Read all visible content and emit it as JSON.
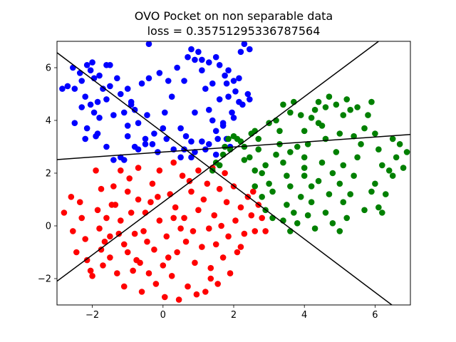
{
  "chart_data": {
    "type": "scatter",
    "title": "OVO Pocket on non separable data",
    "subtitle": "loss = 0.35751295336787564",
    "xlabel": "",
    "ylabel": "",
    "xlim": [
      -3.0,
      7.0
    ],
    "ylim": [
      -3.0,
      7.0
    ],
    "xticks": [
      -2,
      0,
      2,
      4,
      6
    ],
    "yticks": [
      -2,
      0,
      2,
      4,
      6
    ],
    "xtick_labels": [
      "−2",
      "0",
      "2",
      "4",
      "6"
    ],
    "ytick_labels": [
      "−2",
      "0",
      "2",
      "4",
      "6"
    ],
    "grid": false,
    "legend": "none",
    "series": [
      {
        "color": "#0000ff",
        "points": [
          [
            -2.85,
            5.2
          ],
          [
            -2.7,
            5.3
          ],
          [
            -2.5,
            5.2
          ],
          [
            -2.55,
            6.0
          ],
          [
            -2.5,
            3.9
          ],
          [
            -2.35,
            5.8
          ],
          [
            -2.3,
            5.5
          ],
          [
            -2.15,
            6.1
          ],
          [
            -2.0,
            6.2
          ],
          [
            -2.05,
            5.9
          ],
          [
            -1.95,
            5.6
          ],
          [
            -1.8,
            5.7
          ],
          [
            -1.7,
            5.2
          ],
          [
            -1.6,
            6.1
          ],
          [
            -1.5,
            6.1
          ],
          [
            -2.3,
            4.5
          ],
          [
            -2.2,
            4.9
          ],
          [
            -2.05,
            4.6
          ],
          [
            -1.95,
            4.3
          ],
          [
            -1.85,
            4.7
          ],
          [
            -1.8,
            4.1
          ],
          [
            -1.6,
            4.8
          ],
          [
            -1.5,
            5.3
          ],
          [
            -1.4,
            4.2
          ],
          [
            -1.3,
            5.6
          ],
          [
            -1.2,
            5.0
          ],
          [
            -1.1,
            4.3
          ],
          [
            -1.0,
            5.2
          ],
          [
            -0.9,
            4.7
          ],
          [
            -0.8,
            4.4
          ],
          [
            -0.7,
            3.9
          ],
          [
            -0.6,
            5.4
          ],
          [
            -0.4,
            6.9
          ],
          [
            -0.4,
            5.6
          ],
          [
            -0.45,
            4.2
          ],
          [
            -0.5,
            3.1
          ],
          [
            -0.7,
            2.9
          ],
          [
            -1.0,
            3.4
          ],
          [
            -1.2,
            2.6
          ],
          [
            -1.4,
            2.5
          ],
          [
            -1.1,
            2.5
          ],
          [
            -2.15,
            3.7
          ],
          [
            -2.2,
            3.3
          ],
          [
            -1.9,
            3.4
          ],
          [
            -1.6,
            3.0
          ],
          [
            -1.85,
            3.5
          ],
          [
            -0.9,
            4.6
          ],
          [
            -0.25,
            3.5
          ],
          [
            -0.15,
            2.8
          ],
          [
            -0.3,
            3.1
          ],
          [
            -0.1,
            5.8
          ],
          [
            0.15,
            5.5
          ],
          [
            0.25,
            4.9
          ],
          [
            0.4,
            6.0
          ],
          [
            0.05,
            4.3
          ],
          [
            0.0,
            3.7
          ],
          [
            0.1,
            3.3
          ],
          [
            0.3,
            2.9
          ],
          [
            0.6,
            5.5
          ],
          [
            0.8,
            6.7
          ],
          [
            0.7,
            6.4
          ],
          [
            0.9,
            6.3
          ],
          [
            1.0,
            6.6
          ],
          [
            1.1,
            6.3
          ],
          [
            1.3,
            6.2
          ],
          [
            1.1,
            5.9
          ],
          [
            1.2,
            5.2
          ],
          [
            1.4,
            5.4
          ],
          [
            1.5,
            6.4
          ],
          [
            1.6,
            6.1
          ],
          [
            1.75,
            5.7
          ],
          [
            1.85,
            5.9
          ],
          [
            1.8,
            5.4
          ],
          [
            2.0,
            5.5
          ],
          [
            2.15,
            5.6
          ],
          [
            2.05,
            5.1
          ],
          [
            2.15,
            4.7
          ],
          [
            2.25,
            4.6
          ],
          [
            2.4,
            5.0
          ],
          [
            2.45,
            4.8
          ],
          [
            2.2,
            6.6
          ],
          [
            2.3,
            6.9
          ],
          [
            2.45,
            6.7
          ],
          [
            1.85,
            4.9
          ],
          [
            1.6,
            4.8
          ],
          [
            1.3,
            4.4
          ],
          [
            1.4,
            4.0
          ],
          [
            1.5,
            3.6
          ],
          [
            1.7,
            3.9
          ],
          [
            1.9,
            3.0
          ],
          [
            1.95,
            4.3
          ],
          [
            2.0,
            4.1
          ],
          [
            0.9,
            4.3
          ],
          [
            0.65,
            3.4
          ],
          [
            0.8,
            3.2
          ],
          [
            0.6,
            2.9
          ],
          [
            0.9,
            2.8
          ],
          [
            0.8,
            2.6
          ],
          [
            1.5,
            2.7
          ],
          [
            1.8,
            3.3
          ],
          [
            1.2,
            2.9
          ],
          [
            0.5,
            2.6
          ],
          [
            1.1,
            3.2
          ],
          [
            -1.0,
            3.8
          ],
          [
            -0.8,
            3.0
          ],
          [
            1.55,
            3.3
          ],
          [
            -0.5,
            3.3
          ],
          [
            1.7,
            3.8
          ],
          [
            1.3,
            3.1
          ],
          [
            0.5,
            3.7
          ]
        ]
      },
      {
        "color": "#ff0000",
        "points": [
          [
            -2.8,
            0.5
          ],
          [
            -2.6,
            1.1
          ],
          [
            -2.55,
            -0.2
          ],
          [
            -2.3,
            0.3
          ],
          [
            -2.2,
            -0.5
          ],
          [
            -2.15,
            -1.3
          ],
          [
            -2.05,
            -1.7
          ],
          [
            -2.0,
            -1.9
          ],
          [
            -1.9,
            2.1
          ],
          [
            -1.85,
            0.6
          ],
          [
            -1.8,
            -0.1
          ],
          [
            -1.75,
            -0.9
          ],
          [
            -1.7,
            -1.5
          ],
          [
            -1.6,
            0.3
          ],
          [
            -1.5,
            -0.4
          ],
          [
            -1.5,
            -1.2
          ],
          [
            -1.4,
            1.5
          ],
          [
            -1.35,
            0.8
          ],
          [
            -1.3,
            -1.8
          ],
          [
            -1.2,
            2.1
          ],
          [
            -1.2,
            0.2
          ],
          [
            -1.1,
            -0.7
          ],
          [
            -1.1,
            -2.3
          ],
          [
            -1.0,
            1.3
          ],
          [
            -1.0,
            -1.0
          ],
          [
            -0.95,
            1.8
          ],
          [
            -0.9,
            0.5
          ],
          [
            -0.85,
            -1.7
          ],
          [
            -0.8,
            -0.3
          ],
          [
            -0.7,
            2.2
          ],
          [
            -0.7,
            1.0
          ],
          [
            -0.65,
            -1.4
          ],
          [
            -0.6,
            -2.5
          ],
          [
            -0.5,
            0.5
          ],
          [
            -0.45,
            -0.6
          ],
          [
            -0.4,
            -1.8
          ],
          [
            -0.3,
            1.6
          ],
          [
            -0.25,
            -0.9
          ],
          [
            -0.2,
            -2.2
          ],
          [
            -0.1,
            2.1
          ],
          [
            -0.1,
            0.2
          ],
          [
            0.0,
            -1.5
          ],
          [
            0.05,
            -2.7
          ],
          [
            0.1,
            -0.4
          ],
          [
            0.2,
            1.2
          ],
          [
            0.25,
            -1.9
          ],
          [
            0.3,
            2.4
          ],
          [
            0.35,
            0.7
          ],
          [
            0.4,
            -1.0
          ],
          [
            0.45,
            -2.8
          ],
          [
            0.55,
            1.9
          ],
          [
            0.6,
            0.3
          ],
          [
            0.65,
            -0.6
          ],
          [
            0.7,
            -2.3
          ],
          [
            0.8,
            1.3
          ],
          [
            0.85,
            -0.2
          ],
          [
            0.9,
            -1.4
          ],
          [
            1.0,
            2.1
          ],
          [
            1.0,
            0.6
          ],
          [
            1.1,
            -0.8
          ],
          [
            1.2,
            -2.5
          ],
          [
            1.25,
            1.6
          ],
          [
            1.3,
            -0.1
          ],
          [
            1.35,
            -1.6
          ],
          [
            1.4,
            2.2
          ],
          [
            1.45,
            0.4
          ],
          [
            1.5,
            -0.7
          ],
          [
            1.55,
            -2.2
          ],
          [
            1.6,
            1.4
          ],
          [
            1.65,
            0.0
          ],
          [
            1.7,
            -1.2
          ],
          [
            1.8,
            0.9
          ],
          [
            1.85,
            -0.4
          ],
          [
            1.9,
            -1.8
          ],
          [
            2.0,
            1.5
          ],
          [
            2.05,
            0.2
          ],
          [
            2.1,
            -1.0
          ],
          [
            2.2,
            0.7
          ],
          [
            2.3,
            -0.3
          ],
          [
            2.4,
            1.1
          ],
          [
            2.5,
            0.4
          ],
          [
            2.6,
            -0.2
          ],
          [
            2.7,
            0.8
          ],
          [
            2.8,
            0.3
          ],
          [
            2.9,
            -0.2
          ],
          [
            -2.35,
            0.9
          ],
          [
            -1.65,
            -0.6
          ],
          [
            -0.55,
            -0.2
          ],
          [
            0.15,
            -1.2
          ],
          [
            1.15,
            1.0
          ],
          [
            -1.45,
            0.8
          ],
          [
            -0.35,
            0.9
          ],
          [
            0.75,
            1.7
          ],
          [
            -2.45,
            -1.0
          ],
          [
            -0.75,
            -1.3
          ],
          [
            0.95,
            -2.6
          ],
          [
            1.75,
            2.0
          ],
          [
            -1.25,
            -0.3
          ],
          [
            0.5,
            -0.1
          ],
          [
            2.55,
            1.3
          ],
          [
            -0.15,
            1.1
          ],
          [
            1.35,
            -2.0
          ],
          [
            -1.75,
            1.4
          ],
          [
            0.3,
            0.3
          ],
          [
            2.2,
            -0.8
          ]
        ]
      },
      {
        "color": "#008000",
        "points": [
          [
            1.4,
            2.1
          ],
          [
            1.5,
            2.4
          ],
          [
            1.6,
            2.3
          ],
          [
            1.7,
            2.7
          ],
          [
            1.75,
            3.0
          ],
          [
            1.85,
            3.3
          ],
          [
            1.9,
            2.9
          ],
          [
            2.0,
            3.4
          ],
          [
            2.1,
            3.3
          ],
          [
            2.2,
            3.2
          ],
          [
            2.3,
            3.0
          ],
          [
            2.5,
            3.5
          ],
          [
            2.6,
            3.6
          ],
          [
            2.7,
            3.3
          ],
          [
            2.45,
            2.6
          ],
          [
            2.6,
            2.1
          ],
          [
            2.8,
            2.0
          ],
          [
            2.9,
            2.3
          ],
          [
            3.0,
            1.6
          ],
          [
            3.1,
            1.3
          ],
          [
            2.6,
            1.5
          ],
          [
            2.8,
            1.1
          ],
          [
            2.9,
            0.6
          ],
          [
            3.1,
            0.3
          ],
          [
            3.2,
            2.7
          ],
          [
            3.3,
            3.6
          ],
          [
            3.2,
            4.0
          ],
          [
            3.4,
            4.6
          ],
          [
            3.6,
            4.3
          ],
          [
            3.7,
            4.7
          ],
          [
            3.4,
            2.4
          ],
          [
            3.5,
            1.9
          ],
          [
            3.6,
            1.5
          ],
          [
            3.5,
            0.8
          ],
          [
            3.7,
            0.5
          ],
          [
            3.6,
            -0.2
          ],
          [
            3.8,
            0.1
          ],
          [
            3.9,
            1.1
          ],
          [
            4.0,
            1.9
          ],
          [
            4.0,
            2.6
          ],
          [
            4.1,
            3.1
          ],
          [
            4.0,
            3.6
          ],
          [
            4.2,
            4.1
          ],
          [
            4.3,
            4.4
          ],
          [
            4.4,
            4.7
          ],
          [
            4.5,
            3.8
          ],
          [
            4.6,
            3.3
          ],
          [
            4.5,
            2.4
          ],
          [
            4.4,
            1.7
          ],
          [
            4.2,
            0.9
          ],
          [
            4.1,
            0.4
          ],
          [
            4.3,
            -0.1
          ],
          [
            4.6,
            0.5
          ],
          [
            4.7,
            1.2
          ],
          [
            4.8,
            2.0
          ],
          [
            4.9,
            2.8
          ],
          [
            5.0,
            3.5
          ],
          [
            5.1,
            4.2
          ],
          [
            5.2,
            4.8
          ],
          [
            5.3,
            4.4
          ],
          [
            5.0,
            1.6
          ],
          [
            5.1,
            0.9
          ],
          [
            5.0,
            -0.2
          ],
          [
            5.2,
            0.3
          ],
          [
            5.3,
            1.2
          ],
          [
            5.4,
            1.9
          ],
          [
            5.5,
            2.6
          ],
          [
            5.6,
            3.1
          ],
          [
            5.7,
            3.7
          ],
          [
            5.8,
            4.2
          ],
          [
            5.9,
            4.7
          ],
          [
            6.0,
            3.5
          ],
          [
            6.1,
            2.9
          ],
          [
            6.2,
            2.3
          ],
          [
            6.0,
            1.6
          ],
          [
            6.1,
            0.7
          ],
          [
            6.2,
            0.5
          ],
          [
            6.3,
            1.2
          ],
          [
            6.5,
            1.9
          ],
          [
            6.6,
            2.6
          ],
          [
            6.7,
            3.1
          ],
          [
            6.8,
            2.2
          ],
          [
            6.9,
            2.8
          ],
          [
            4.9,
            4.6
          ],
          [
            4.7,
            4.9
          ],
          [
            5.5,
            4.5
          ],
          [
            4.4,
            3.9
          ],
          [
            3.9,
            4.2
          ],
          [
            3.3,
            3.1
          ],
          [
            2.7,
            2.9
          ],
          [
            4.8,
            0.1
          ],
          [
            5.7,
            0.6
          ],
          [
            4.0,
            2.2
          ],
          [
            3.0,
            3.9
          ],
          [
            5.9,
            1.3
          ],
          [
            4.6,
            4.5
          ],
          [
            3.8,
            3.0
          ],
          [
            6.4,
            2.1
          ],
          [
            2.3,
            2.5
          ],
          [
            5.4,
            3.4
          ],
          [
            3.6,
            2.8
          ],
          [
            4.2,
            1.5
          ],
          [
            5.1,
            2.3
          ],
          [
            6.5,
            3.3
          ],
          [
            3.4,
            0.2
          ]
        ]
      }
    ],
    "lines": [
      {
        "slope": 0.095,
        "intercept": 2.8,
        "color": "#000000"
      },
      {
        "slope": 1.0,
        "intercept": 0.9,
        "color": "#000000"
      },
      {
        "slope": -1.01,
        "intercept": 3.54,
        "color": "#000000"
      }
    ]
  }
}
